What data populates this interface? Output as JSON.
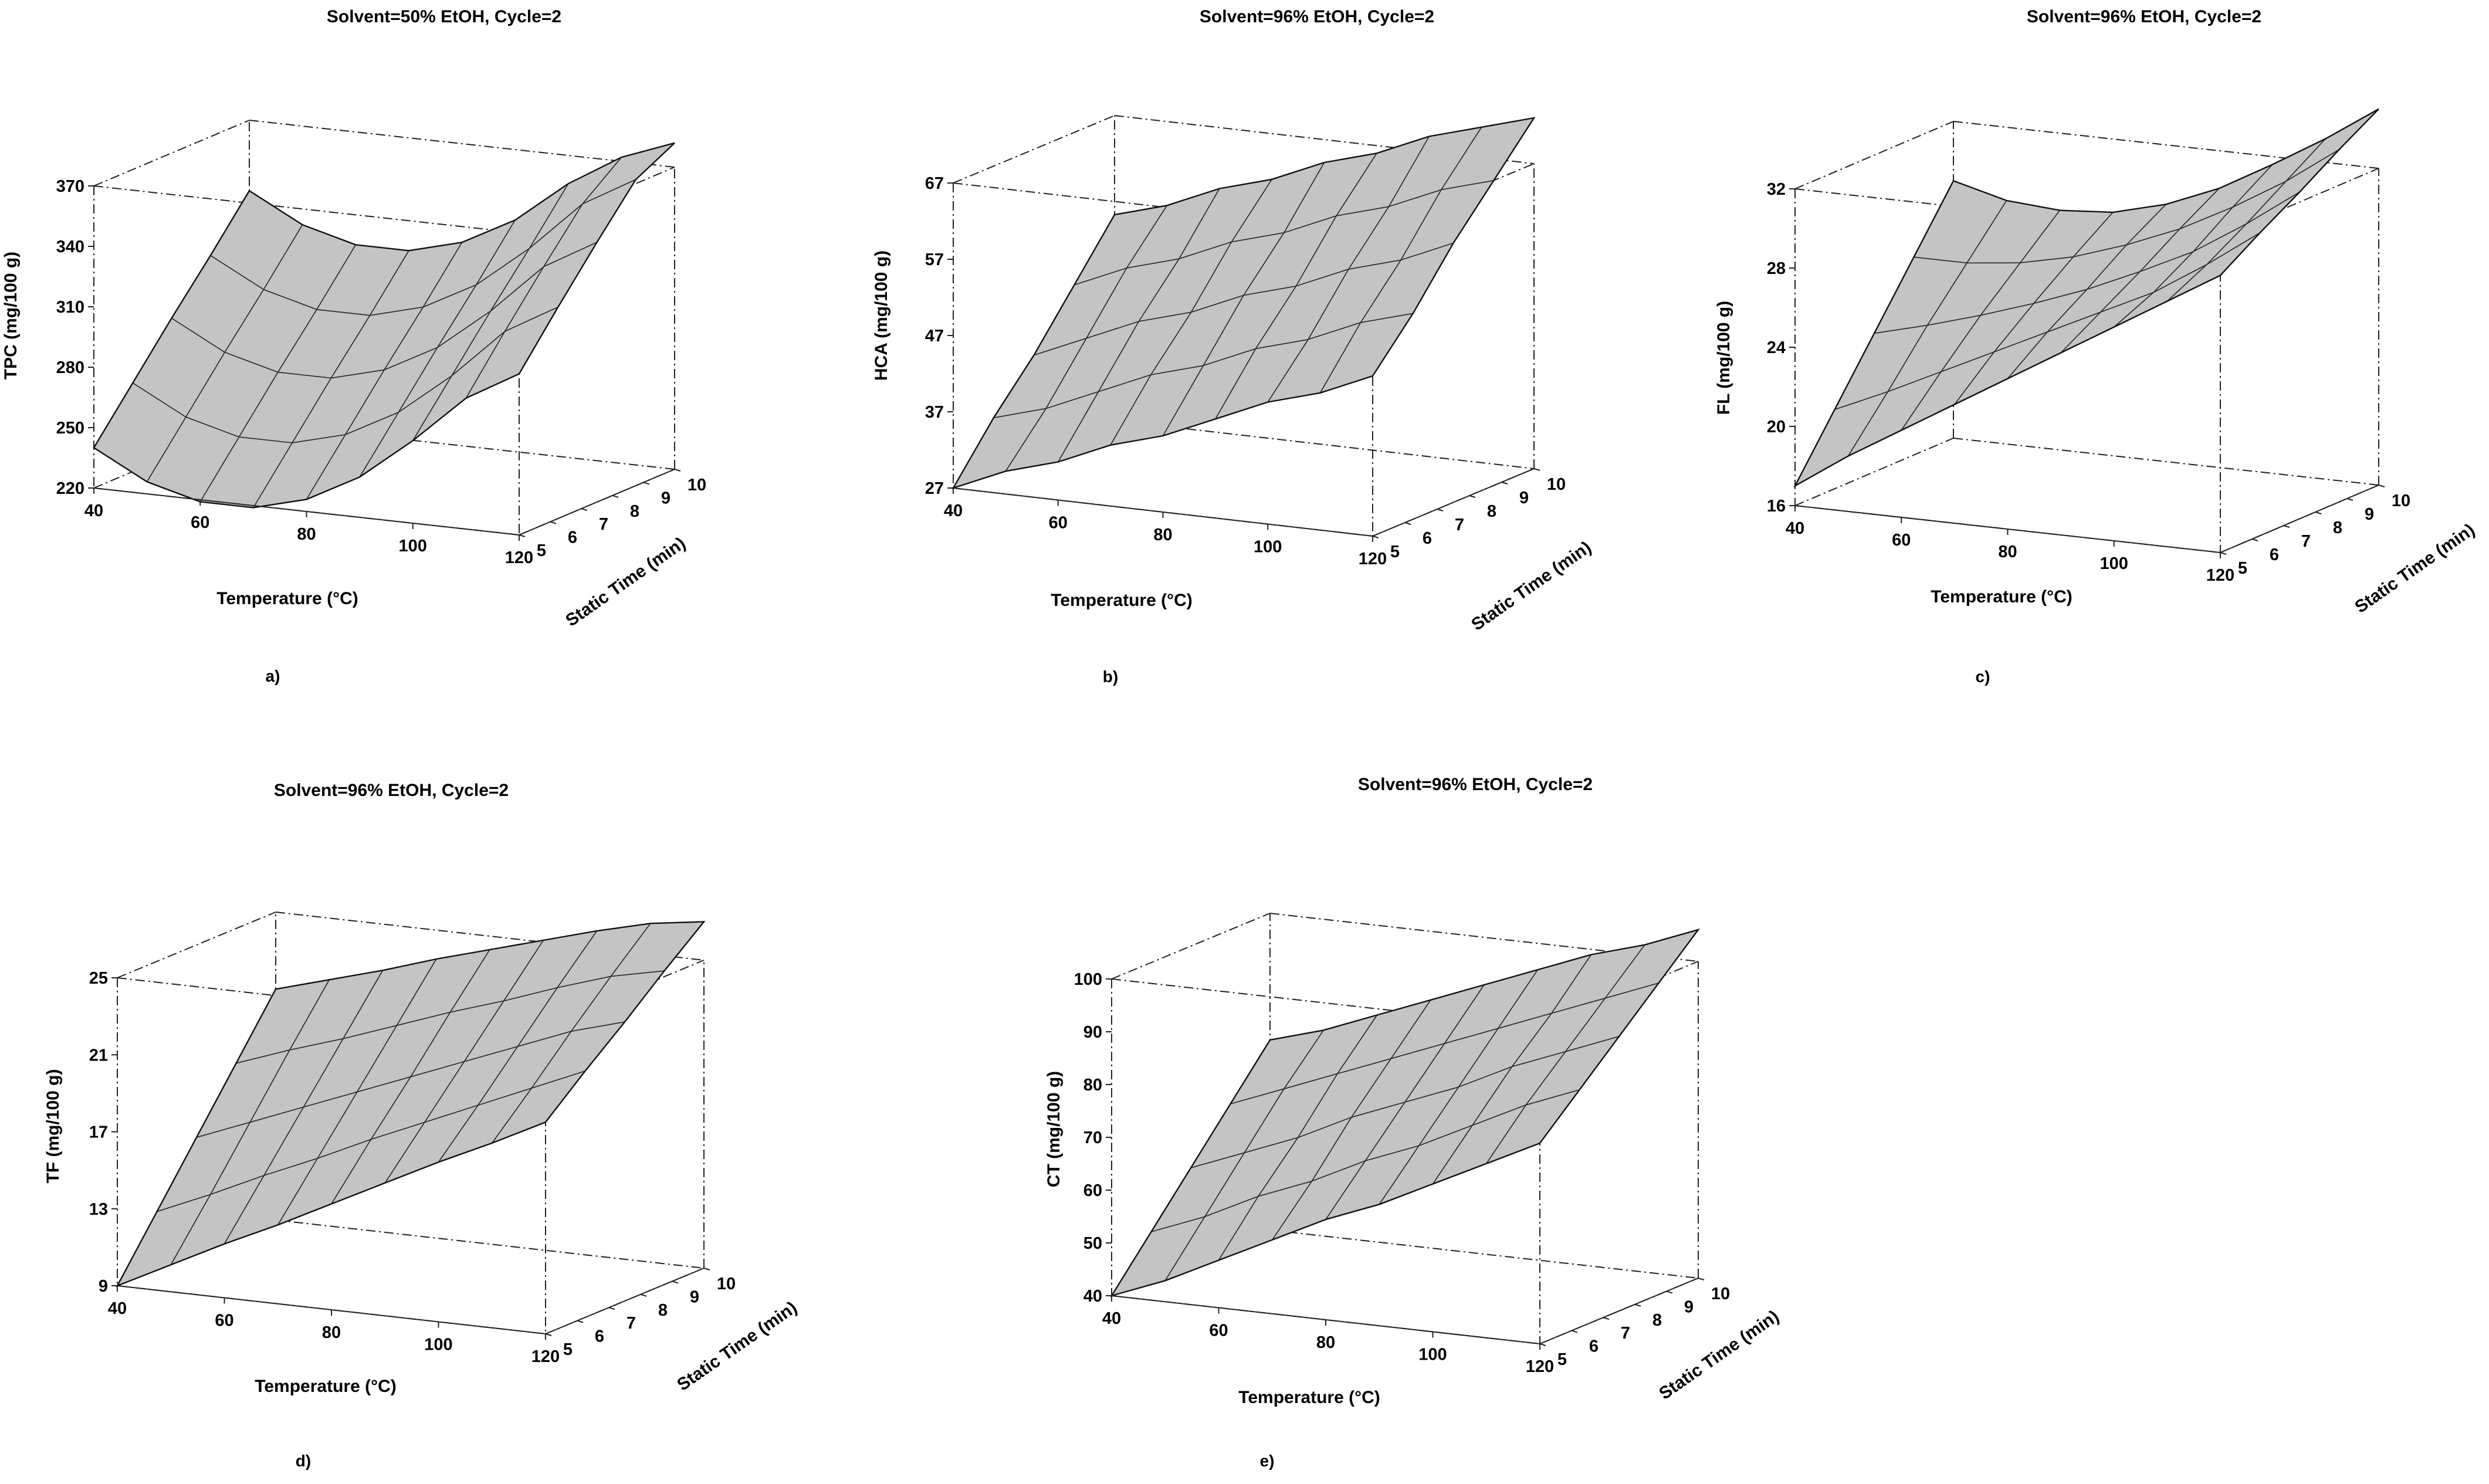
{
  "chart_data": [
    {
      "type": "surface",
      "caption": "a)",
      "title": "Solvent=50% EtOH, Cycle=2",
      "xlabel": "Temperature (°C)",
      "ylabel": "Static Time (min)",
      "zlabel": "TPC (mg/100 g)",
      "xticks": [
        "40",
        "60",
        "80",
        "100",
        "120"
      ],
      "yticks": [
        "5",
        "6",
        "7",
        "8",
        "9",
        "10"
      ],
      "zticks": [
        "220",
        "250",
        "280",
        "310",
        "340",
        "370"
      ],
      "xlim": [
        40,
        120
      ],
      "ylim": [
        5,
        10
      ],
      "zlim": [
        220,
        370
      ],
      "corners": {
        "T40_t5": 240,
        "T40_t10": 335,
        "T120_t5": 300,
        "T120_t10": 382
      },
      "grid_values": {
        "temperature": [
          40,
          50,
          60,
          70,
          80,
          90,
          100,
          110,
          120
        ],
        "static_time": [
          5,
          6.25,
          7.5,
          8.75,
          10
        ],
        "z": [
          [
            240,
            226,
            219,
            219,
            226,
            240,
            261,
            285,
            300
          ],
          [
            264,
            250,
            243,
            243,
            250,
            264,
            285,
            310,
            325
          ],
          [
            288,
            274,
            267,
            267,
            274,
            288,
            309,
            334,
            349
          ],
          [
            311,
            297,
            290,
            290,
            297,
            311,
            332,
            357,
            372
          ],
          [
            335,
            321,
            314,
            314,
            321,
            335,
            356,
            372,
            382
          ]
        ]
      }
    },
    {
      "type": "surface",
      "caption": "b)",
      "title": "Solvent=96% EtOH, Cycle=2",
      "xlabel": "Temperature (°C)",
      "ylabel": "Static Time (min)",
      "zlabel": "HCA (mg/100 g)",
      "xticks": [
        "40",
        "60",
        "80",
        "100",
        "120"
      ],
      "yticks": [
        "5",
        "6",
        "7",
        "8",
        "9",
        "10"
      ],
      "zticks": [
        "27",
        "37",
        "47",
        "57",
        "67"
      ],
      "xlim": [
        40,
        120
      ],
      "ylim": [
        5,
        10
      ],
      "zlim": [
        27,
        67
      ],
      "corners": {
        "T40_t5": 27,
        "T40_t10": 54,
        "T120_t5": 48,
        "T120_t10": 73
      },
      "grid_values": {
        "temperature": [
          40,
          50,
          60,
          70,
          80,
          90,
          100,
          110,
          120
        ],
        "static_time": [
          5,
          6.25,
          7.5,
          8.75,
          10
        ],
        "z": [
          [
            27,
            30,
            32,
            35,
            37,
            40,
            43,
            45,
            48
          ],
          [
            34,
            36,
            39,
            42,
            44,
            47,
            49,
            52,
            54
          ],
          [
            40,
            43,
            46,
            48,
            51,
            53,
            56,
            58,
            61
          ],
          [
            47,
            50,
            52,
            55,
            57,
            60,
            62,
            65,
            67
          ],
          [
            54,
            56,
            59,
            61,
            64,
            66,
            69,
            71,
            73
          ]
        ]
      }
    },
    {
      "type": "surface",
      "caption": "c)",
      "title": "Solvent=96% EtOH, Cycle=2",
      "xlabel": "Temperature (°C)",
      "ylabel": "Static Time (min)",
      "zlabel": "FL (mg/100 g)",
      "xticks": [
        "40",
        "60",
        "80",
        "100",
        "120"
      ],
      "yticks": [
        "5",
        "6",
        "7",
        "8",
        "9",
        "10"
      ],
      "zticks": [
        "16",
        "20",
        "24",
        "28",
        "32"
      ],
      "xlim": [
        40,
        120
      ],
      "ylim": [
        5,
        10
      ],
      "zlim": [
        16,
        32
      ],
      "corners": {
        "T40_t5": 17,
        "T40_t10": 29,
        "T120_t5": 30,
        "T120_t10": 35
      },
      "grid_values": {
        "temperature": [
          40,
          50,
          60,
          70,
          80,
          90,
          100,
          110,
          120
        ],
        "static_time": [
          5,
          6.25,
          7.5,
          8.75,
          10
        ],
        "z": [
          [
            17.0,
            18.8,
            20.4,
            22.0,
            23.6,
            25.2,
            26.8,
            28.4,
            30.0
          ],
          [
            20.0,
            21.2,
            22.5,
            23.8,
            25.1,
            26.4,
            27.7,
            29.4,
            31.3
          ],
          [
            23.0,
            23.7,
            24.5,
            25.4,
            26.4,
            27.6,
            28.9,
            30.6,
            32.5
          ],
          [
            26.0,
            26.0,
            26.3,
            26.9,
            27.8,
            28.9,
            30.3,
            31.9,
            33.8
          ],
          [
            29.0,
            28.3,
            28.1,
            28.3,
            29.0,
            30.1,
            31.6,
            33.2,
            35.0
          ]
        ]
      }
    },
    {
      "type": "surface",
      "caption": "d)",
      "title": "Solvent=96% EtOH, Cycle=2",
      "xlabel": "Temperature (°C)",
      "ylabel": "Static Time (min)",
      "zlabel": "TF (mg/100 g)",
      "xticks": [
        "40",
        "60",
        "80",
        "100",
        "120"
      ],
      "yticks": [
        "5",
        "6",
        "7",
        "8",
        "9",
        "10"
      ],
      "zticks": [
        "9",
        "13",
        "17",
        "21",
        "25"
      ],
      "xlim": [
        40,
        120
      ],
      "ylim": [
        5,
        10
      ],
      "zlim": [
        9,
        25
      ],
      "corners": {
        "T40_t5": 9,
        "T40_t10": 21,
        "T120_t5": 20,
        "T120_t10": 27
      },
      "grid_values": {
        "temperature": [
          40,
          50,
          60,
          70,
          80,
          90,
          100,
          110,
          120
        ],
        "static_time": [
          5,
          6.25,
          7.5,
          8.75,
          10
        ],
        "z": [
          [
            9.0,
            10.4,
            11.8,
            13.1,
            14.5,
            15.9,
            17.3,
            18.6,
            20.0
          ],
          [
            12.0,
            13.2,
            14.5,
            15.7,
            17.0,
            18.2,
            19.4,
            20.6,
            21.8
          ],
          [
            15.0,
            16.1,
            17.2,
            18.3,
            19.4,
            20.5,
            21.6,
            22.7,
            23.5
          ],
          [
            18.0,
            19.0,
            19.9,
            20.9,
            21.9,
            22.8,
            23.8,
            24.7,
            25.3
          ],
          [
            21.0,
            21.8,
            22.6,
            23.5,
            24.3,
            25.1,
            25.9,
            26.6,
            27.0
          ]
        ]
      }
    },
    {
      "type": "surface",
      "caption": "e)",
      "title": "Solvent=96% EtOH, Cycle=2",
      "xlabel": "Temperature (°C)",
      "ylabel": "Static Time (min)",
      "zlabel": "CT (mg/100 g)",
      "xticks": [
        "40",
        "60",
        "80",
        "100",
        "120"
      ],
      "yticks": [
        "5",
        "6",
        "7",
        "8",
        "9",
        "10"
      ],
      "zticks": [
        "40",
        "50",
        "60",
        "70",
        "80",
        "90",
        "100"
      ],
      "xlim": [
        40,
        120
      ],
      "ylim": [
        5,
        10
      ],
      "zlim": [
        40,
        100
      ],
      "corners": {
        "T40_t5": 40,
        "T40_t10": 76,
        "T120_t5": 78,
        "T120_t10": 106
      },
      "grid_values": {
        "temperature": [
          40,
          50,
          60,
          70,
          80,
          90,
          100,
          110,
          120
        ],
        "static_time": [
          5,
          6.25,
          7.5,
          8.75,
          10
        ],
        "z": [
          [
            40,
            44,
            49,
            54,
            59,
            63,
            68,
            73,
            78
          ],
          [
            49,
            53,
            58,
            62,
            67,
            71,
            76,
            81,
            85
          ],
          [
            58,
            62,
            66,
            71,
            75,
            79,
            84,
            88,
            92
          ],
          [
            67,
            71,
            75,
            79,
            83,
            87,
            91,
            95,
            99
          ],
          [
            76,
            79,
            83,
            87,
            91,
            95,
            99,
            102,
            106
          ]
        ]
      }
    }
  ]
}
